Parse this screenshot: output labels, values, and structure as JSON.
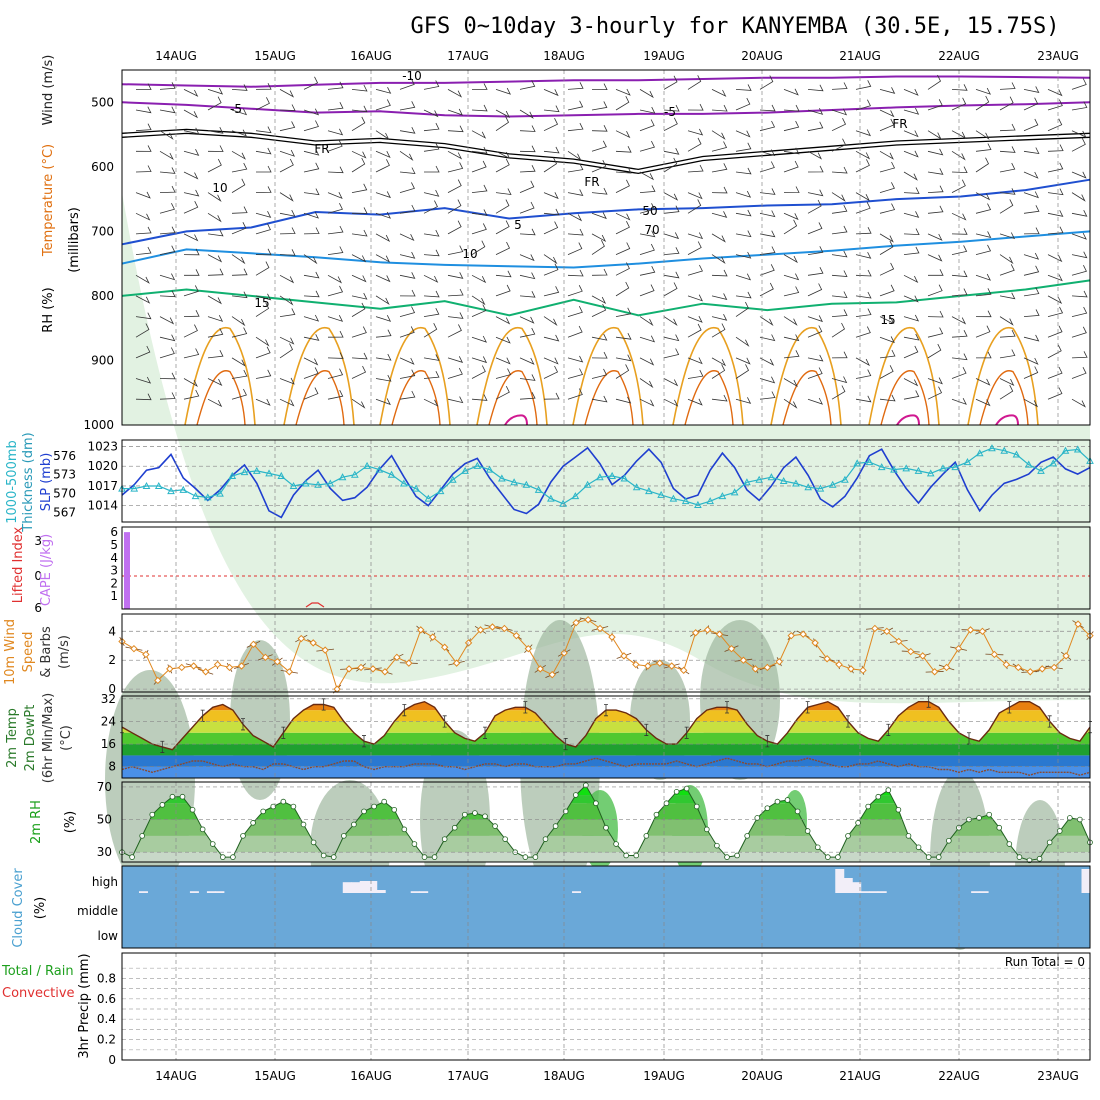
{
  "title": "GFS 0~10day 3-hourly for KANYEMBA (30.5E, 15.75S)",
  "date_labels": [
    "14AUG",
    "15AUG",
    "16AUG",
    "17AUG",
    "18AUG",
    "19AUG",
    "20AUG",
    "21AUG",
    "22AUG",
    "23AUG"
  ],
  "colors": {
    "slp": "#1f3fd0",
    "thickness": "#2ab5c8",
    "cape": "#c070f0",
    "lifted": "#e03030",
    "wind10m": "#e08820",
    "rh2m": "#30c030",
    "cloud": "#6aa8d8",
    "cloud_gap": "#f2eef8"
  },
  "panels": {
    "upper": {
      "ylabels": [
        "Wind (m/s)",
        "Temperature (°C)",
        "RH (%)",
        "(millibars)"
      ]
    },
    "slp": {
      "ylabels": [
        "1000-500mb",
        "Thickness (dm)",
        "SLP (mb)"
      ]
    },
    "cape": {
      "ylabels": [
        "Lifted Index",
        "CAPE (J/kg)"
      ]
    },
    "wind": {
      "ylabels": [
        "10m Wind",
        "Speed",
        "& Barbs",
        "(m/s)"
      ]
    },
    "temp": {
      "ylabels": [
        "2m Temp",
        "2m DewPt",
        "(6hr Min/Max)",
        "(°C)"
      ]
    },
    "rh": {
      "ylabels": [
        "2m RH",
        "(%)"
      ]
    },
    "cloud": {
      "ylabels": [
        "Cloud Cover",
        "(%)"
      ]
    },
    "precip": {
      "ylabels": [
        "Total / Rain",
        "Convective",
        "3hr Precip (mm)"
      ],
      "run_total": "Run Total = 0"
    }
  },
  "chart_data": [
    {
      "type": "contour",
      "name": "upper-air cross-section",
      "yaxis_ticks": [
        500,
        600,
        700,
        800,
        900,
        1000
      ],
      "ylim": [
        450,
        1000
      ],
      "contour_labels": [
        "-10",
        "-5",
        "-5",
        "FR",
        "FR",
        "FR",
        "5",
        "10",
        "15",
        "15",
        "10",
        "50",
        "70"
      ],
      "isotherms": [
        {
          "label": "-10",
          "p": [
            472,
            474,
            476,
            473,
            470,
            470,
            468,
            466,
            466,
            464,
            462,
            462,
            460,
            460,
            461,
            462
          ]
        },
        {
          "label": "-5",
          "p": [
            500,
            504,
            510,
            516,
            514,
            520,
            522,
            520,
            518,
            518,
            516,
            512,
            508,
            505,
            503,
            500
          ]
        },
        {
          "label": "FR",
          "p": [
            548,
            542,
            548,
            560,
            556,
            564,
            580,
            588,
            604,
            584,
            576,
            568,
            560,
            556,
            552,
            548
          ]
        },
        {
          "label": "5",
          "p": [
            720,
            700,
            694,
            670,
            674,
            664,
            680,
            672,
            666,
            664,
            660,
            658,
            650,
            646,
            636,
            620
          ]
        },
        {
          "label": "10",
          "p": [
            750,
            728,
            734,
            740,
            748,
            752,
            754,
            756,
            750,
            742,
            736,
            730,
            722,
            716,
            708,
            700
          ]
        },
        {
          "label": "15",
          "p": [
            800,
            790,
            800,
            810,
            820,
            808,
            830,
            806,
            830,
            812,
            822,
            812,
            810,
            800,
            790,
            776
          ]
        }
      ]
    },
    {
      "type": "line",
      "name": "SLP and thickness",
      "yaxis_left_ticks": [
        567,
        570,
        573,
        576
      ],
      "yaxis_right_ticks": [
        1014,
        1017,
        1020,
        1023
      ],
      "slp_ylim": [
        1011.5,
        1024
      ],
      "series": [
        {
          "name": "SLP",
          "values": [
            1015.6,
            1017.2,
            1019.4,
            1019.8,
            1021.8,
            1018.2,
            1016.6,
            1014.8,
            1016.4,
            1018.6,
            1020.2,
            1017.4,
            1013.2,
            1012.2,
            1015.6,
            1017.8,
            1019.4,
            1016.6,
            1014.8,
            1015.2,
            1016.8,
            1019.5,
            1021.6,
            1018.4,
            1015.4,
            1014.0,
            1016.4,
            1018.8,
            1020.4,
            1021.2,
            1018.2,
            1015.8,
            1013.4,
            1012.8,
            1014.2,
            1017.6,
            1020.0,
            1021.4,
            1022.8,
            1020.4,
            1017.2,
            1018.6,
            1020.8,
            1022.6,
            1020.6,
            1016.6,
            1015.0,
            1015.6,
            1019.4,
            1022.0,
            1019.8,
            1016.4,
            1014.8,
            1017.0,
            1019.8,
            1021.4,
            1018.6,
            1015.0,
            1013.8,
            1015.4,
            1018.2,
            1021.6,
            1022.6,
            1019.4,
            1016.6,
            1014.4,
            1016.8,
            1018.8,
            1020.6,
            1016.4,
            1013.2,
            1015.6,
            1017.4,
            1018.0,
            1018.8,
            1020.6,
            1021.4,
            1019.6,
            1018.8,
            1019.8
          ]
        },
        {
          "name": "Thickness",
          "values": [
            570.8,
            570.8,
            571.2,
            571.2,
            570.4,
            570.6,
            569.6,
            569.4,
            570.0,
            572.8,
            573.4,
            573.6,
            573.2,
            572.8,
            571.2,
            571.6,
            571.4,
            571.6,
            572.6,
            573.0,
            574.4,
            573.8,
            573.0,
            571.6,
            570.8,
            569.2,
            570.4,
            572.2,
            573.6,
            574.4,
            573.8,
            572.4,
            571.8,
            571.4,
            570.6,
            569.2,
            568.4,
            569.6,
            571.4,
            572.6,
            572.8,
            572.4,
            571.0,
            570.4,
            569.8,
            569.2,
            568.8,
            568.2,
            568.8,
            569.6,
            570.2,
            571.8,
            572.2,
            572.6,
            572.0,
            571.6,
            571.0,
            570.8,
            571.4,
            572.2,
            574.8,
            575.0,
            574.2,
            573.8,
            574.0,
            573.6,
            573.2,
            574.0,
            574.2,
            575.0,
            576.4,
            577.2,
            576.8,
            576.2,
            574.6,
            573.6,
            574.8,
            576.8,
            577.0,
            575.2
          ]
        }
      ]
    },
    {
      "type": "bar",
      "name": "CAPE and Lifted Index",
      "yaxis_left_ticks": [
        6,
        0,
        -3
      ],
      "yaxis_right_ticks": [
        1,
        2,
        3,
        4,
        5,
        6
      ],
      "cape_bar": {
        "x_index": 0,
        "value": 6
      },
      "lifted_index_zero_line": 0
    },
    {
      "type": "line",
      "name": "10m wind speed",
      "ylabel": "(m/s)",
      "yaxis_ticks": [
        0,
        2,
        4
      ],
      "ylim": [
        -0.2,
        5.2
      ],
      "series": [
        {
          "name": "speed",
          "values": [
            3.3,
            2.8,
            2.4,
            0.6,
            1.4,
            1.5,
            1.6,
            1.2,
            1.7,
            1.5,
            1.6,
            3.1,
            2.2,
            1.9,
            1.2,
            3.5,
            3.2,
            2.7,
            0.0,
            1.4,
            1.5,
            1.4,
            1.2,
            2.2,
            1.8,
            4.1,
            3.6,
            2.9,
            1.8,
            3.2,
            4.1,
            4.3,
            4.2,
            3.7,
            2.8,
            1.4,
            1.0,
            2.5,
            4.6,
            4.8,
            4.2,
            3.6,
            2.3,
            1.7,
            1.6,
            1.8,
            1.6,
            1.3,
            3.9,
            4.1,
            3.8,
            2.8,
            2.0,
            1.4,
            1.5,
            1.9,
            3.7,
            3.8,
            3.2,
            2.1,
            1.7,
            1.4,
            1.3,
            4.2,
            4.0,
            3.3,
            2.6,
            2.3,
            1.2,
            1.5,
            2.8,
            4.1,
            4.0,
            2.4,
            1.7,
            1.5,
            1.2,
            1.4,
            1.5,
            2.3,
            4.5,
            3.7
          ]
        }
      ]
    },
    {
      "type": "area",
      "name": "2m temperature and dewpoint",
      "ylabel": "(°C)",
      "yaxis_ticks": [
        8,
        16,
        24,
        32
      ],
      "ylim": [
        4,
        33
      ],
      "series": [
        {
          "name": "2m Temp",
          "values": [
            22,
            20,
            18,
            16,
            15,
            14,
            18,
            22,
            26,
            29,
            30,
            28,
            23,
            19,
            17,
            15,
            20,
            25,
            28,
            30,
            30,
            29,
            24,
            20,
            17,
            16,
            19,
            24,
            28,
            30,
            31,
            29,
            24,
            20,
            18,
            17,
            20,
            26,
            28,
            29,
            29,
            27,
            23,
            19,
            16,
            15,
            19,
            25,
            28,
            28,
            27,
            25,
            21,
            18,
            16,
            16,
            20,
            25,
            28,
            29,
            29,
            28,
            23,
            19,
            17,
            16,
            20,
            25,
            29,
            30,
            31,
            29,
            24,
            20,
            18,
            17,
            21,
            26,
            29,
            31,
            31,
            29,
            24,
            20,
            18,
            17,
            21,
            27,
            29,
            31,
            31,
            29,
            24,
            20,
            18,
            17,
            22
          ]
        },
        {
          "name": "2m DewPt",
          "values": [
            7,
            8,
            7,
            6,
            7,
            8,
            9,
            10,
            10,
            9,
            8,
            9,
            8,
            8,
            7,
            9,
            9,
            8,
            7,
            8,
            8,
            9,
            10,
            10,
            8,
            7,
            8,
            8,
            8,
            9,
            9,
            9,
            8,
            8,
            7,
            8,
            9,
            9,
            8,
            9,
            9,
            8,
            8,
            8,
            9,
            9,
            10,
            11,
            10,
            9,
            8,
            9,
            9,
            9,
            9,
            10,
            9,
            8,
            9,
            10,
            11,
            10,
            9,
            9,
            8,
            9,
            10,
            10,
            11,
            10,
            9,
            8,
            8,
            9,
            9,
            10,
            9,
            8,
            9,
            8,
            8,
            7,
            7,
            6,
            7,
            6,
            7,
            6,
            6,
            6,
            5,
            6,
            6,
            6,
            6,
            5,
            6
          ]
        }
      ]
    },
    {
      "type": "area",
      "name": "2m relative humidity",
      "ylabel": "(%)",
      "yaxis_ticks": [
        30,
        50,
        70
      ],
      "ylim": [
        24,
        73
      ],
      "series": [
        {
          "name": "2m RH",
          "values": [
            30,
            27,
            40,
            53,
            59,
            64,
            64,
            56,
            44,
            35,
            27,
            27,
            40,
            48,
            55,
            58,
            61,
            58,
            47,
            36,
            28,
            27,
            40,
            47,
            55,
            58,
            61,
            56,
            44,
            35,
            27,
            27,
            38,
            45,
            53,
            54,
            52,
            46,
            38,
            30,
            27,
            27,
            38,
            46,
            55,
            65,
            71,
            60,
            45,
            35,
            28,
            28,
            40,
            53,
            60,
            67,
            69,
            58,
            44,
            34,
            27,
            28,
            40,
            51,
            57,
            61,
            62,
            55,
            43,
            33,
            27,
            27,
            40,
            48,
            58,
            64,
            68,
            56,
            40,
            33,
            27,
            27,
            37,
            45,
            50,
            51,
            53,
            45,
            35,
            27,
            25,
            26,
            36,
            43,
            51,
            50,
            36
          ]
        }
      ]
    },
    {
      "type": "bar",
      "name": "cloud cover",
      "categories": [
        "low",
        "middle",
        "high"
      ],
      "ylabel": "(%)",
      "high_cloud_gap_percent": [
        0,
        0,
        3,
        0,
        0,
        0,
        0,
        0,
        3,
        0,
        3,
        3,
        0,
        0,
        0,
        0,
        0,
        0,
        0,
        0,
        0,
        0,
        0,
        0,
        0,
        0,
        18,
        18,
        20,
        20,
        5,
        0,
        0,
        0,
        3,
        3,
        0,
        0,
        0,
        0,
        0,
        0,
        0,
        0,
        0,
        0,
        0,
        0,
        0,
        0,
        0,
        0,
        0,
        3,
        0,
        0,
        0,
        0,
        0,
        0,
        0,
        0,
        0,
        0,
        0,
        0,
        0,
        0,
        0,
        0,
        0,
        0,
        0,
        0,
        0,
        0,
        0,
        0,
        0,
        0,
        0,
        0,
        0,
        0,
        40,
        25,
        18,
        3,
        3,
        3,
        0,
        0,
        0,
        0,
        0,
        0,
        0,
        0,
        0,
        0,
        3,
        3,
        0,
        0,
        0,
        0,
        0,
        0,
        0,
        0,
        0,
        0,
        0,
        40
      ]
    },
    {
      "type": "bar",
      "name": "3hr precipitation",
      "ylabel": "3hr Precip (mm)",
      "yaxis_ticks": [
        0,
        0.2,
        0.4,
        0.6,
        0.8
      ],
      "ylim": [
        0,
        1
      ],
      "values": []
    }
  ]
}
